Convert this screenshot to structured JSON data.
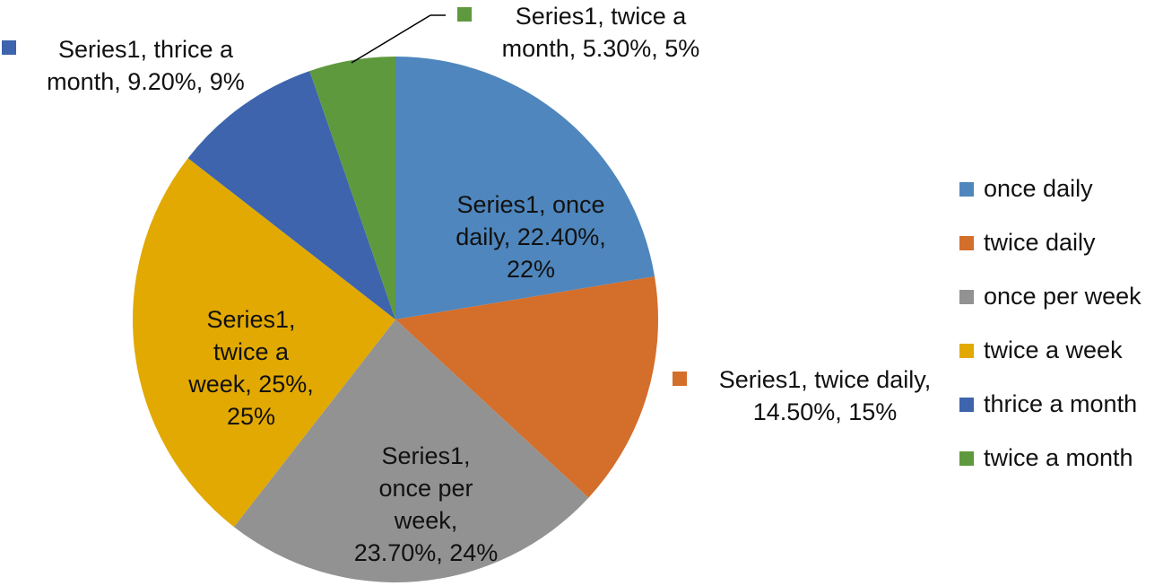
{
  "chart_data": {
    "type": "pie",
    "title": "",
    "series_name": "Series1",
    "categories": [
      "once daily",
      "twice daily",
      "once per week",
      "twice a week",
      "thrice a month",
      "twice a month"
    ],
    "values": [
      22.4,
      14.5,
      23.7,
      25.0,
      9.2,
      5.3
    ],
    "rounded_percent": [
      22,
      15,
      24,
      25,
      9,
      5
    ],
    "colors": [
      "#4e86bd",
      "#d46e2b",
      "#929292",
      "#e2a902",
      "#3d64ac",
      "#5f993e"
    ],
    "start_angle_deg": 0,
    "direction": "clockwise",
    "legend_position": "right",
    "data_labels": [
      {
        "lines": [
          "Series1, once",
          "daily, 22.40%,",
          "22%"
        ]
      },
      {
        "lines": [
          "Series1, twice daily,",
          "14.50%, 15%"
        ]
      },
      {
        "lines": [
          "Series1,",
          "once per",
          "week,",
          "23.70%, 24%"
        ]
      },
      {
        "lines": [
          "Series1,",
          "twice a",
          "week, 25%,",
          "25%"
        ]
      },
      {
        "lines": [
          "Series1, thrice a",
          "month, 9.20%, 9%"
        ]
      },
      {
        "lines": [
          "Series1, twice a",
          "month, 5.30%, 5%"
        ]
      }
    ]
  },
  "legend": {
    "items": [
      {
        "label": "once daily",
        "color": "#4e86bd"
      },
      {
        "label": "twice daily",
        "color": "#d46e2b"
      },
      {
        "label": "once per week",
        "color": "#929292"
      },
      {
        "label": "twice a week",
        "color": "#e2a902"
      },
      {
        "label": "thrice a month",
        "color": "#3d64ac"
      },
      {
        "label": "twice a month",
        "color": "#5f993e"
      }
    ]
  }
}
